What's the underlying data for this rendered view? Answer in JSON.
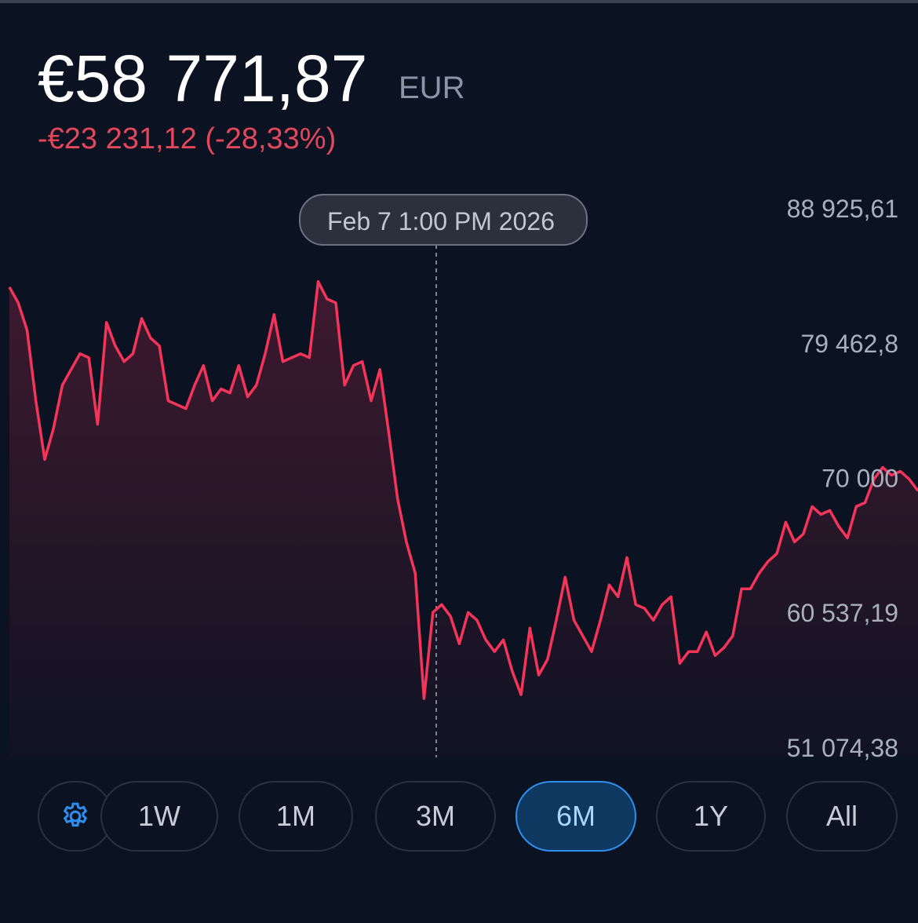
{
  "header": {
    "price": "€58 771,87",
    "currency": "EUR",
    "change": "-€23 231,12 (-28,33%)"
  },
  "chart_data": {
    "type": "line",
    "tooltip": "Feb 7 1:00 PM 2026",
    "color": "#f5345a",
    "values": [
      83371,
      82270,
      80345,
      75393,
      71266,
      73467,
      76493,
      77594,
      78694,
      78419,
      73742,
      80895,
      79244,
      78144,
      78694,
      81170,
      79794,
      79244,
      75393,
      75118,
      74843,
      76493,
      77869,
      75393,
      76218,
      75943,
      77869,
      75668,
      76493,
      78694,
      81445,
      78144,
      78419,
      78694,
      78419,
      83756,
      82545,
      82270,
      76493,
      77869,
      78144,
      75393,
      77594,
      73192,
      68515,
      65489,
      63288,
      54485,
      60537,
      61088,
      60262,
      58337,
      60537,
      59987,
      58612,
      57786,
      58612,
      56411,
      54760,
      59437,
      56136,
      57236,
      59987,
      63013,
      59987,
      58887,
      57786,
      59987,
      62463,
      61638,
      64389,
      61088,
      60813,
      59987,
      61088,
      61638,
      56961,
      57786,
      57786,
      59162,
      57511,
      58062,
      58887,
      62188,
      62188,
      63288,
      64114,
      64664,
      66865,
      65489,
      66039,
      67965,
      67415,
      67690,
      66590,
      65764,
      67965,
      68240,
      69891,
      70716,
      70166,
      70441,
      69891,
      69066
    ],
    "ylim": [
      51074.38,
      88925.61
    ],
    "yticks": [
      {
        "value": 88925.61,
        "label": "88 925,61"
      },
      {
        "value": 79462.8,
        "label": "79 462,8"
      },
      {
        "value": 70000,
        "label": "70 000"
      },
      {
        "value": 60537.19,
        "label": "60 537,19"
      },
      {
        "value": 51074.38,
        "label": "51 074,38"
      }
    ]
  },
  "buttons": [
    "1W",
    "1M",
    "3M",
    "6M",
    "1Y",
    "All"
  ]
}
